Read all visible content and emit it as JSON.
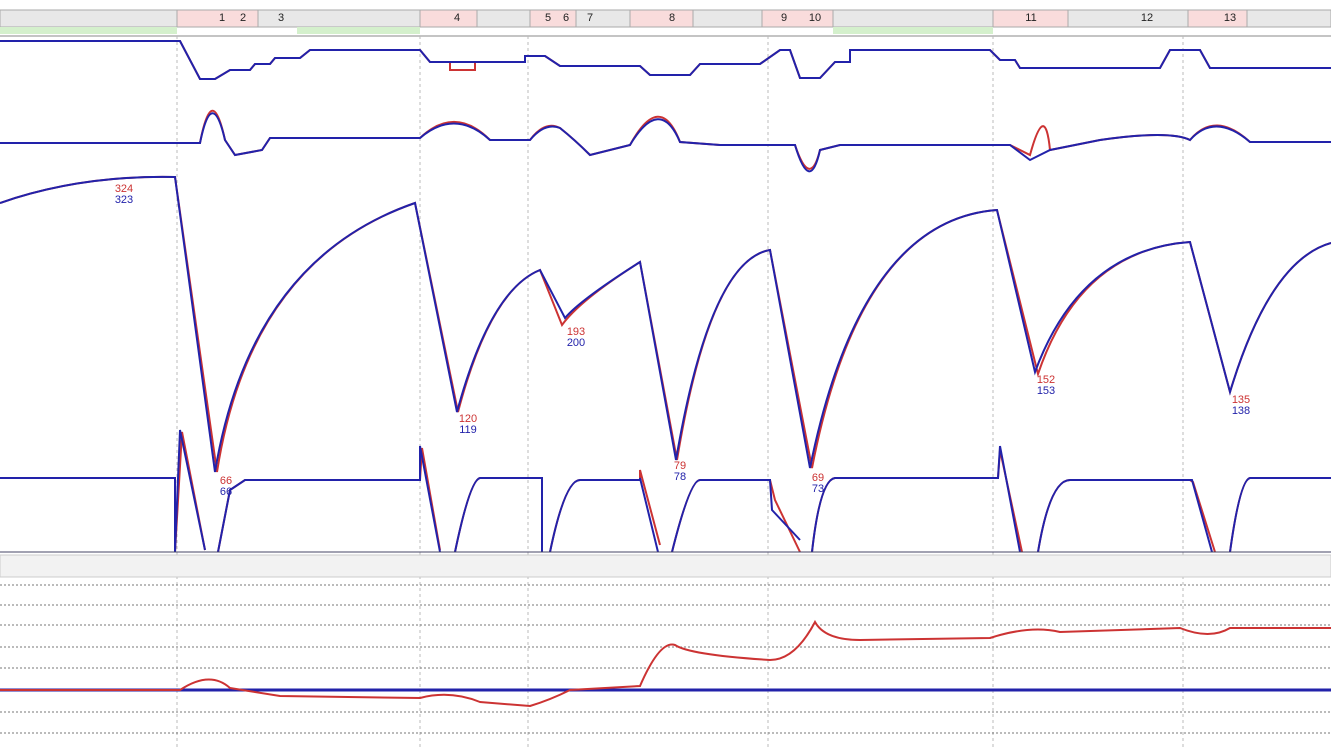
{
  "segments": [
    1,
    2,
    3,
    4,
    5,
    6,
    7,
    8,
    9,
    10,
    11,
    12,
    13
  ],
  "annotations": [
    {
      "red": 324,
      "blue": 323
    },
    {
      "red": 66,
      "blue": 66
    },
    {
      "red": 120,
      "blue": 119
    },
    {
      "red": 193,
      "blue": 200
    },
    {
      "red": 79,
      "blue": 78
    },
    {
      "red": 69,
      "blue": 73
    },
    {
      "red": 152,
      "blue": 153
    },
    {
      "red": 135,
      "blue": 138
    }
  ]
}
